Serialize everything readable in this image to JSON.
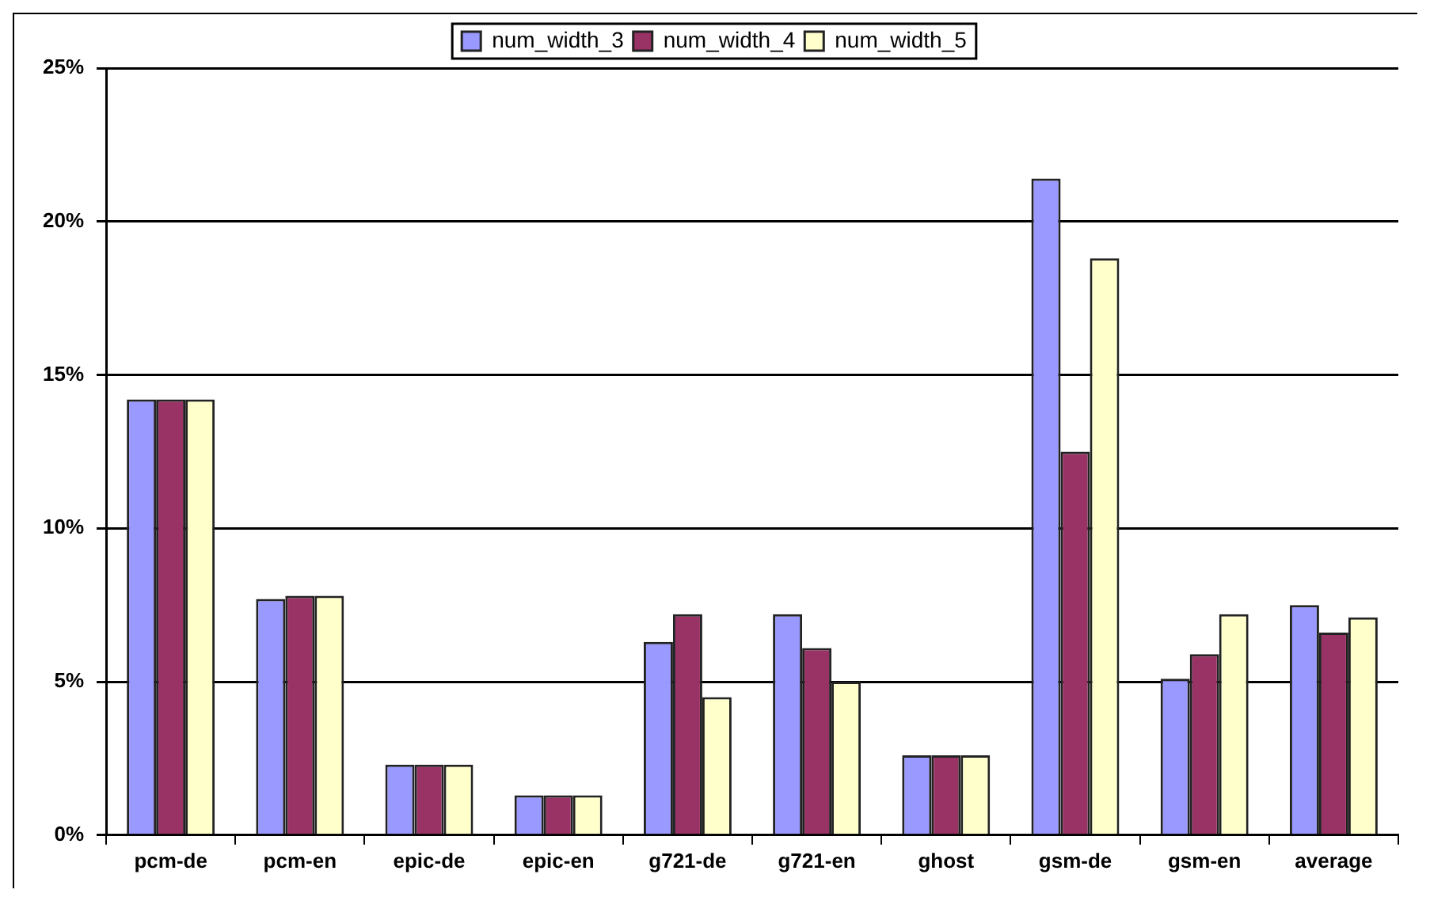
{
  "chart_data": {
    "type": "bar",
    "categories": [
      "pcm-de",
      "pcm-en",
      "epic-de",
      "epic-en",
      "g721-de",
      "g721-en",
      "ghost",
      "gsm-de",
      "gsm-en",
      "average"
    ],
    "series": [
      {
        "name": "num_width_3",
        "color": "#9999ff",
        "values": [
          14.2,
          7.7,
          2.3,
          1.3,
          6.3,
          7.2,
          2.6,
          21.4,
          5.1,
          7.5
        ]
      },
      {
        "name": "num_width_4",
        "color": "#993366",
        "values": [
          14.2,
          7.8,
          2.3,
          1.3,
          7.2,
          6.1,
          2.6,
          12.5,
          5.9,
          6.6
        ]
      },
      {
        "name": "num_width_5",
        "color": "#ffffcc",
        "values": [
          14.2,
          7.8,
          2.3,
          1.3,
          4.5,
          5.0,
          2.6,
          18.8,
          7.2,
          7.1
        ]
      }
    ],
    "ylim": [
      0,
      25
    ],
    "yticks": [
      {
        "value": 0,
        "label": "0%"
      },
      {
        "value": 5,
        "label": "5%"
      },
      {
        "value": 10,
        "label": "10%"
      },
      {
        "value": 15,
        "label": "15%"
      },
      {
        "value": 20,
        "label": "20%"
      },
      {
        "value": 25,
        "label": "25%"
      }
    ],
    "grid": "y",
    "legend": "top"
  }
}
